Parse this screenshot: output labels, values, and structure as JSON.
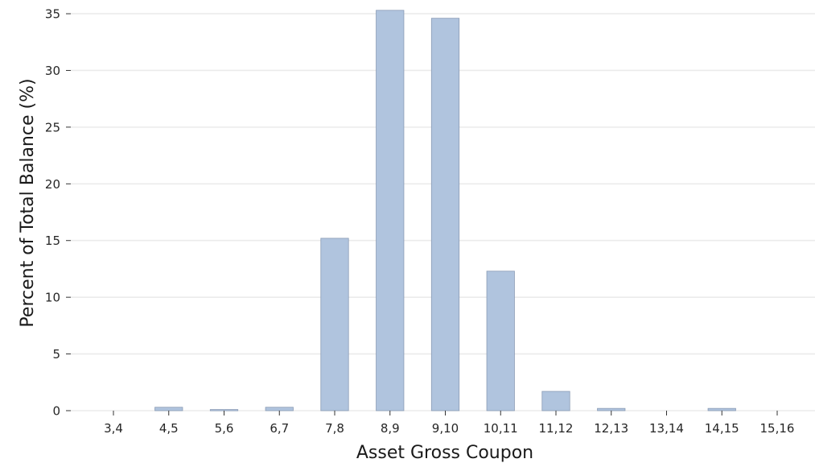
{
  "chart_data": {
    "type": "bar",
    "categories": [
      "3,4",
      "4,5",
      "5,6",
      "6,7",
      "7,8",
      "8,9",
      "9,10",
      "10,11",
      "11,12",
      "12,13",
      "13,14",
      "14,15",
      "15,16"
    ],
    "values": [
      0.0,
      0.3,
      0.1,
      0.3,
      15.2,
      35.3,
      34.6,
      12.3,
      1.7,
      0.2,
      0.0,
      0.2,
      0.0
    ],
    "xlabel": "Asset Gross Coupon",
    "ylabel": "Percent of Total Balance (%)",
    "ylim": [
      0,
      35.5
    ],
    "yticks": [
      0,
      5,
      10,
      15,
      20,
      25,
      30,
      35
    ],
    "grid": "horizontal",
    "bar_color": "#b0c4de",
    "legend": "none"
  }
}
